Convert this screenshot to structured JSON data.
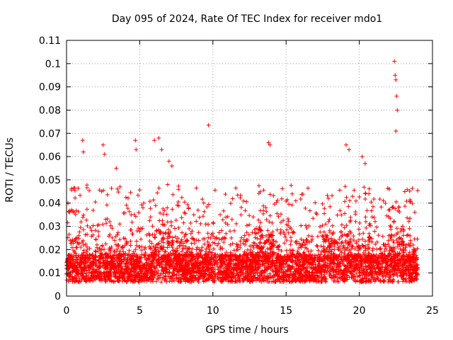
{
  "chart_data": {
    "type": "scatter",
    "title": "Day 095 of 2024, Rate Of TEC Index for receiver mdo1",
    "xlabel": "GPS time / hours",
    "ylabel": "ROTI / TECUs",
    "xlim": [
      0,
      25
    ],
    "ylim": [
      0,
      0.11
    ],
    "xticks": [
      0,
      5,
      10,
      15,
      20,
      25
    ],
    "xtick_labels": [
      "0",
      "5",
      "10",
      "15",
      "20",
      "25"
    ],
    "yticks": [
      0,
      0.01,
      0.02,
      0.03,
      0.04,
      0.05,
      0.06,
      0.07,
      0.08,
      0.09,
      0.1,
      0.11
    ],
    "ytick_labels": [
      "0",
      "0.01",
      "0.02",
      "0.03",
      "0.04",
      "0.05",
      "0.06",
      "0.07",
      "0.08",
      "0.09",
      "0.1",
      "0.11"
    ],
    "grid": true,
    "marker": "+",
    "color": "#ff0000",
    "series": [
      {
        "name": "mdo1",
        "description_points": "Dense band of ROTI values between ~0.003 and ~0.03 TECU/min across 0-24 h, with sparse spikes",
        "x": [
          0.1,
          0.2,
          1.1,
          1.15,
          2.5,
          2.6,
          3.4,
          4.7,
          4.75,
          6.0,
          6.3,
          6.5,
          7.0,
          7.2,
          9.7,
          13.8,
          13.9,
          19.1,
          19.3,
          20.2,
          20.4,
          22.4,
          22.45,
          22.5,
          22.55,
          22.6,
          22.5
        ],
        "y": [
          0.04,
          0.036,
          0.067,
          0.062,
          0.065,
          0.061,
          0.055,
          0.067,
          0.063,
          0.067,
          0.068,
          0.063,
          0.058,
          0.056,
          0.0735,
          0.066,
          0.065,
          0.065,
          0.063,
          0.06,
          0.057,
          0.101,
          0.095,
          0.093,
          0.086,
          0.08,
          0.071
        ]
      }
    ]
  }
}
